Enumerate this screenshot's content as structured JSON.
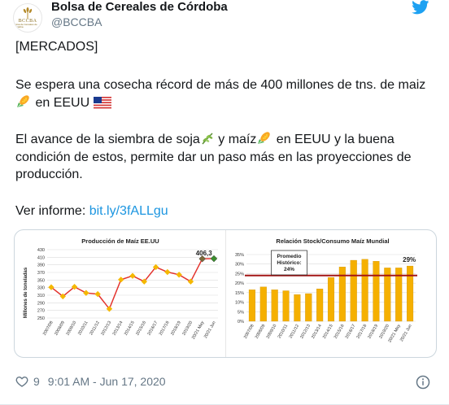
{
  "account": {
    "name": "Bolsa de Cereales de Córdoba",
    "handle": "@BCCBA",
    "avatar_text": "BCCBA",
    "avatar_subtext": "Bolsa de Cereales de Córdoba"
  },
  "tweet": {
    "line1": "[MERCADOS]",
    "line2": "Se espera una cosecha récord de más de 400 millones de tns. de maiz",
    "line3_text": " en EEUU ",
    "line4_a": "El avance de la siembra de soja",
    "line4_b": " y maíz",
    "line4_c": " en EEUU y la buena",
    "line5": "condición de estos, permite dar un paso más en las proyecciones de",
    "line6": "producción.",
    "line7_label": "Ver informe: ",
    "link": "bit.ly/3fALLgu"
  },
  "footer": {
    "likes": "9",
    "timestamp": "9:01 AM - Jun 17, 2020"
  },
  "icons": {
    "avatar": "wheat-sheaf-icon",
    "twitter": "twitter-bird-icon",
    "corn": "corn-emoji",
    "flag": "us-flag-emoji",
    "soy": "seedling-emoji",
    "like": "heart-icon",
    "info": "info-icon"
  },
  "colors": {
    "twitter_blue": "#1da1f2",
    "link": "#1b95e0",
    "text": "#14171a",
    "muted": "#657786",
    "chart_line": "#e3342f",
    "chart_marker": "#f5b800",
    "bar_fill": "#f5b000"
  },
  "chart_data": [
    {
      "type": "line",
      "title": "Producción de Maíz EE.UU",
      "ylabel": "Millones de toneladas",
      "ylim": [
        250,
        430
      ],
      "yticks": [
        "430",
        "410",
        "390",
        "370",
        "350",
        "330",
        "310",
        "290",
        "270",
        "250"
      ],
      "categories": [
        "2007/08",
        "2008/09",
        "2009/10",
        "2010/11",
        "2011/12",
        "2012/13",
        "2013/14",
        "2014/15",
        "2015/16",
        "2016/17",
        "2017/18",
        "2018/19",
        "2019/20",
        "20/21 May",
        "20/21 Jun"
      ],
      "values": [
        331,
        307,
        332,
        316,
        313,
        274,
        351,
        361,
        346,
        384,
        371,
        364,
        346,
        406,
        406.3
      ],
      "annotation": "406,3",
      "grid": true
    },
    {
      "type": "bar",
      "title": "Relación Stock/Consumo Maíz Mundial",
      "ylim": [
        0,
        35
      ],
      "yticks": [
        "35%",
        "30%",
        "25%",
        "20%",
        "15%",
        "10%",
        "5%",
        "0%"
      ],
      "categories": [
        "2007/08",
        "2008/09",
        "2009/10",
        "2010/11",
        "2011/12",
        "2012/13",
        "2013/14",
        "2014/15",
        "2015/16",
        "2016/17",
        "2017/18",
        "2018/19",
        "2019/20",
        "20/21 May",
        "20/21 Jun"
      ],
      "values": [
        16.5,
        18,
        16.5,
        16,
        14,
        14.5,
        17,
        23,
        28.5,
        32,
        32.5,
        31.5,
        28,
        28,
        29
      ],
      "average": 24,
      "average_label_line1": "Promedio",
      "average_label_line2": "Histórico:",
      "average_label_value": "24%",
      "annotation": "29%",
      "grid": true
    }
  ]
}
